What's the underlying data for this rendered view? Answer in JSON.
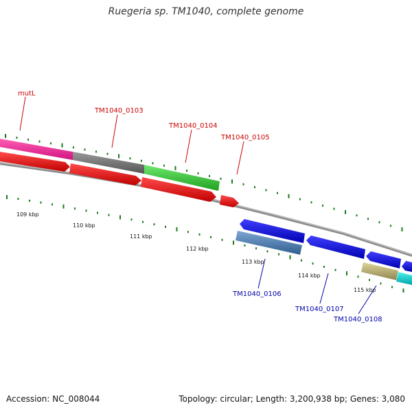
{
  "title": "Ruegeria sp. TM1040, complete genome",
  "footer": {
    "accession": "Accession: NC_008044",
    "summary": "Topology: circular; Length: 3,200,938 bp; Genes: 3,080"
  },
  "colors": {
    "forward_label": "#cc0000",
    "reverse_label": "#0000aa",
    "tick": "#1a7a1a",
    "backbone": "#888888"
  },
  "kbp_labels": [
    "109 kbp",
    "110 kbp",
    "111 kbp",
    "112 kbp",
    "113 kbp",
    "114 kbp",
    "115 kbp"
  ],
  "gene_labels": [
    {
      "name": "mutL",
      "strand": "forward"
    },
    {
      "name": "TM1040_0103",
      "strand": "forward"
    },
    {
      "name": "TM1040_0104",
      "strand": "forward"
    },
    {
      "name": "TM1040_0105",
      "strand": "forward"
    },
    {
      "name": "TM1040_0106",
      "strand": "reverse"
    },
    {
      "name": "TM1040_0107",
      "strand": "reverse"
    },
    {
      "name": "TM1040_0108",
      "strand": "reverse"
    }
  ]
}
